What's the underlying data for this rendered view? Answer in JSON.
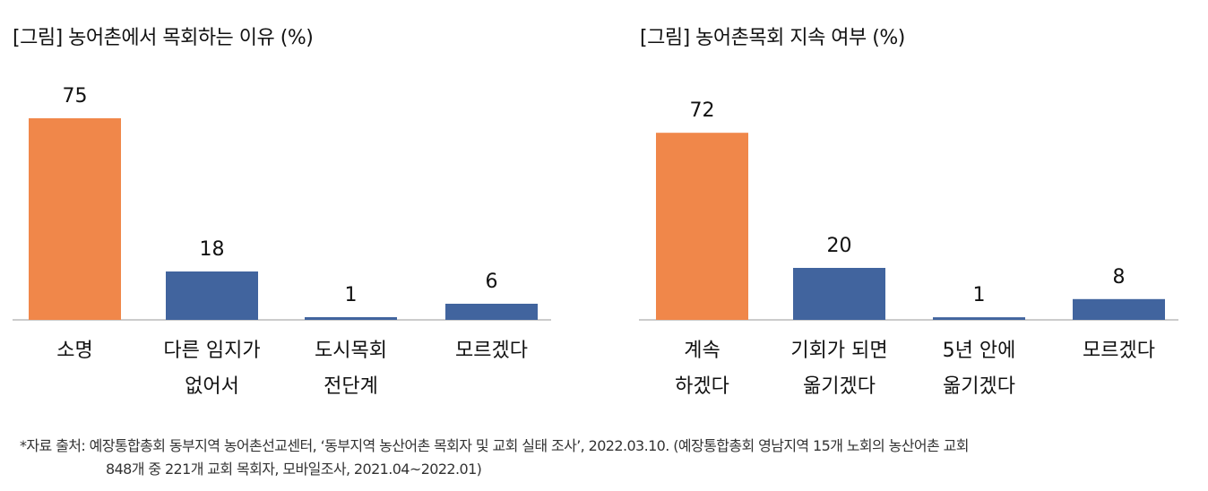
{
  "chart_data": [
    {
      "type": "bar",
      "title": "[그림] 농어촌에서 목회하는 이유 (%)",
      "categories": [
        [
          "소명"
        ],
        [
          "다른 임지가",
          "없어서"
        ],
        [
          "도시목회",
          "전단계"
        ],
        [
          "모르겠다"
        ]
      ],
      "values": [
        75,
        18,
        1,
        6
      ],
      "colors": [
        "#F0874A",
        "#41649E",
        "#41649E",
        "#41649E"
      ],
      "ylim": [
        0,
        80
      ]
    },
    {
      "type": "bar",
      "title": "[그림] 농어촌목회 지속 여부 (%)",
      "categories": [
        [
          "계속",
          "하겠다"
        ],
        [
          "기회가 되면",
          "옮기겠다"
        ],
        [
          "5년 안에",
          "옮기겠다"
        ],
        [
          "모르겠다"
        ]
      ],
      "values": [
        72,
        20,
        1,
        8
      ],
      "colors": [
        "#F0874A",
        "#41649E",
        "#41649E",
        "#41649E"
      ],
      "ylim": [
        0,
        80
      ]
    }
  ],
  "footnote": {
    "line1": "*자료 출처: 예장통합총회 동부지역 농어촌선교센터, ‘동부지역 농산어촌 목회자 및 교회 실태 조사’, 2022.03.10. (예장통합총회 영남지역 15개 노회의 농산어촌 교회",
    "line2": "848개 중 221개 교회 목회자, 모바일조사, 2021.04~2022.01)"
  }
}
